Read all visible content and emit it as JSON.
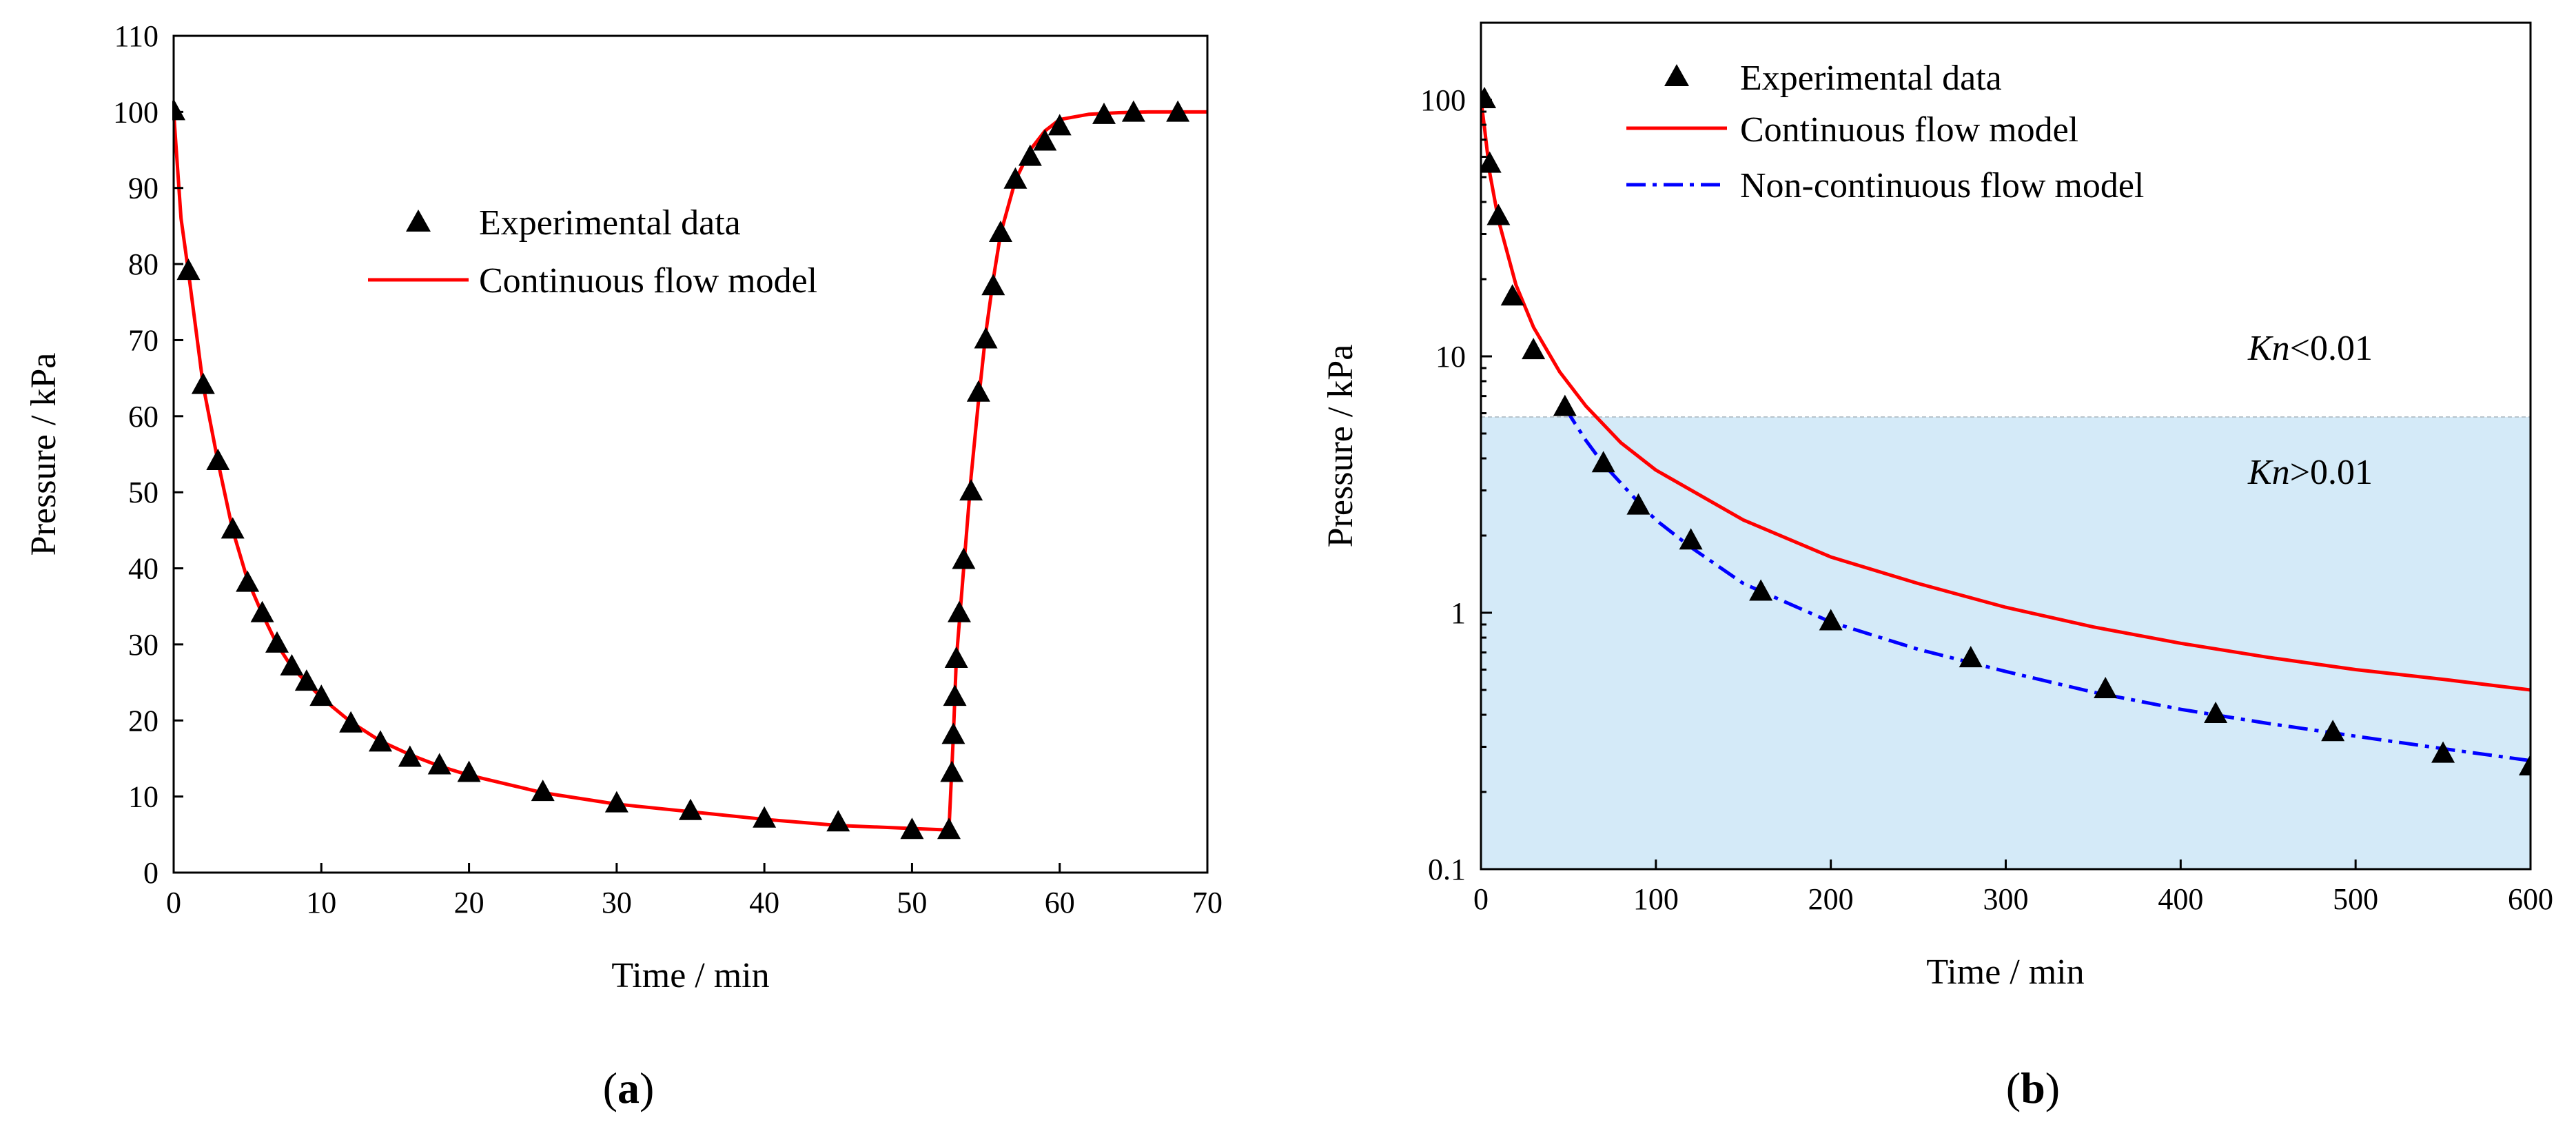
{
  "chart_data": [
    {
      "type": "scatter+line",
      "panel_label": "(a)",
      "xlabel": "Time / min",
      "ylabel": "Pressure / kPa",
      "xlim": [
        0,
        70
      ],
      "ylim": [
        0,
        110
      ],
      "x_ticks": [
        0,
        10,
        20,
        30,
        40,
        50,
        60,
        70
      ],
      "y_ticks": [
        0,
        10,
        20,
        30,
        40,
        50,
        60,
        70,
        80,
        90,
        100,
        110
      ],
      "legend": {
        "placement": "upper-center",
        "entries": [
          "Experimental data",
          "Continuous flow model"
        ]
      },
      "series": [
        {
          "name": "Experimental data",
          "marker": "triangle",
          "color": "#000000",
          "x": [
            0,
            1,
            2,
            3,
            4,
            5,
            6,
            7,
            8,
            9,
            10,
            12,
            14,
            16,
            18,
            20,
            25,
            30,
            35,
            40,
            45,
            50,
            52.5,
            52.7,
            52.8,
            52.9,
            53.0,
            53.2,
            53.5,
            54,
            54.5,
            55,
            55.5,
            56,
            57,
            58,
            59,
            60,
            63,
            65,
            68
          ],
          "y": [
            100,
            79,
            64,
            54,
            45,
            38,
            34,
            30,
            27,
            25,
            23,
            19.5,
            17,
            15,
            14,
            13,
            10.5,
            9,
            8,
            7,
            6.5,
            5.5,
            5.5,
            13,
            18,
            23,
            28,
            34,
            41,
            50,
            63,
            70,
            77,
            84,
            91,
            94,
            96,
            98,
            99.5,
            99.8,
            99.8
          ]
        },
        {
          "name": "Continuous flow model",
          "marker": "line",
          "color": "#ff0000",
          "x": [
            0,
            0.5,
            1,
            2,
            3,
            4,
            5,
            6,
            7,
            8,
            9,
            10,
            12,
            14,
            16,
            18,
            20,
            25,
            30,
            35,
            40,
            45,
            50,
            52.5,
            52.5,
            52.8,
            53,
            53.5,
            54,
            54.5,
            55,
            55.5,
            56,
            57,
            58,
            59,
            60,
            62,
            64,
            66,
            70
          ],
          "y": [
            100,
            86,
            79,
            64,
            54,
            45,
            38.5,
            34,
            30,
            27,
            25,
            23,
            19.8,
            17.3,
            15.5,
            14,
            12.8,
            10.5,
            9,
            8,
            7,
            6.2,
            5.8,
            5.6,
            5.6,
            18,
            28,
            40,
            52,
            62,
            71,
            78,
            84,
            91,
            95,
            97.5,
            99,
            99.7,
            99.9,
            100,
            100
          ]
        }
      ]
    },
    {
      "type": "scatter+line",
      "panel_label": "(b)",
      "xlabel": "Time / min",
      "ylabel": "Pressure / kPa",
      "yscale": "log",
      "xlim": [
        0,
        600
      ],
      "ylim": [
        0.1,
        200
      ],
      "x_ticks": [
        0,
        100,
        200,
        300,
        400,
        500,
        600
      ],
      "y_ticks": [
        0.1,
        1,
        10,
        100
      ],
      "y_tick_labels": [
        "0.1",
        "1",
        "10",
        "100"
      ],
      "shaded_region": {
        "y_from": 0.1,
        "y_to": 5.8,
        "color": "#d4eaf8"
      },
      "annotations": [
        {
          "italic": "Kn",
          "text": "<0.01",
          "x": 440,
          "y": 10
        },
        {
          "italic": "Kn",
          "text": ">0.01",
          "x": 440,
          "y": 3.7
        }
      ],
      "legend": {
        "placement": "upper-center",
        "entries": [
          "Experimental data",
          "Continuous flow model",
          "Non-continuous flow model"
        ]
      },
      "series": [
        {
          "name": "Experimental data",
          "marker": "triangle",
          "color": "#000000",
          "x": [
            2,
            5,
            10,
            18,
            30,
            48,
            70,
            90,
            120,
            160,
            200,
            280,
            357,
            420,
            487,
            550,
            600
          ],
          "y": [
            100,
            56,
            35,
            17,
            10.5,
            6.3,
            3.8,
            2.6,
            1.9,
            1.2,
            0.92,
            0.66,
            0.5,
            0.4,
            0.34,
            0.28,
            0.25
          ]
        },
        {
          "name": "Continuous flow model",
          "marker": "line",
          "color": "#ff0000",
          "x": [
            0,
            2,
            5,
            10,
            20,
            30,
            45,
            60,
            80,
            100,
            150,
            200,
            250,
            300,
            350,
            400,
            450,
            500,
            550,
            600
          ],
          "y": [
            100,
            78,
            52,
            34,
            19,
            13,
            8.7,
            6.4,
            4.6,
            3.6,
            2.3,
            1.65,
            1.3,
            1.05,
            0.88,
            0.76,
            0.67,
            0.6,
            0.55,
            0.5
          ]
        },
        {
          "name": "Non-continuous flow model",
          "marker": "dash-dot",
          "color": "#0000ff",
          "x": [
            48,
            60,
            70,
            80,
            90,
            100,
            120,
            150,
            200,
            250,
            300,
            350,
            400,
            450,
            500,
            550,
            600
          ],
          "y": [
            6.3,
            4.7,
            3.8,
            3.2,
            2.7,
            2.3,
            1.8,
            1.3,
            0.92,
            0.72,
            0.59,
            0.49,
            0.42,
            0.37,
            0.33,
            0.295,
            0.265
          ]
        }
      ]
    }
  ]
}
